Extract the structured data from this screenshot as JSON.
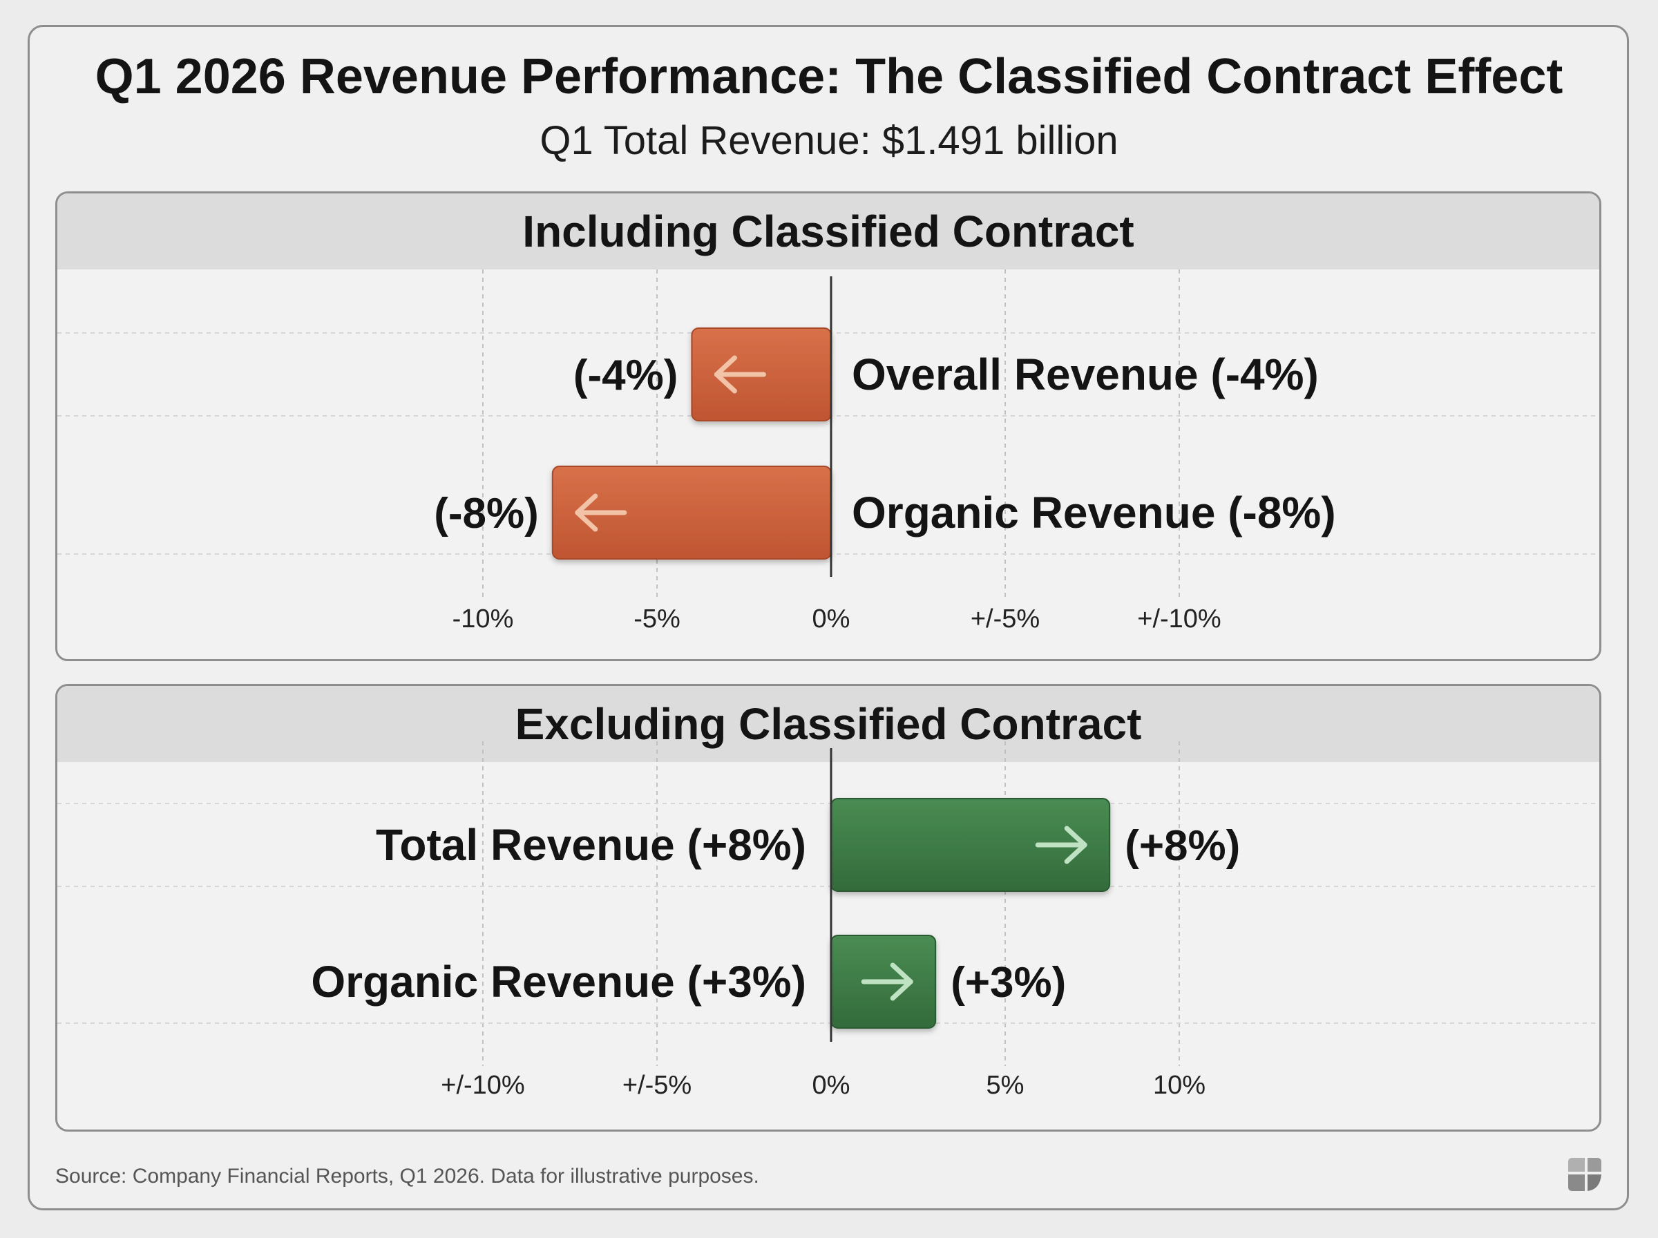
{
  "title": "Q1 2026 Revenue Performance: The Classified Contract Effect",
  "subtitle": "Q1 Total Revenue: $1.491 billion",
  "source": "Source: Company Financial Reports, Q1 2026. Data for illustrative purposes.",
  "colors": {
    "negative": "#c9603a",
    "positive": "#3c7a44",
    "axis": "#333333",
    "grid": "#c2c2c2"
  },
  "chart_data": [
    {
      "type": "bar",
      "orientation": "horizontal",
      "title": "Including Classified Contract",
      "xlim": [
        -10,
        10
      ],
      "ticks": [
        {
          "value": -10,
          "label": "-10%"
        },
        {
          "value": -5,
          "label": "-5%"
        },
        {
          "value": 0,
          "label": "0%"
        },
        {
          "value": 5,
          "label": "+/-5%"
        },
        {
          "value": 10,
          "label": "+/-10%"
        }
      ],
      "bars": [
        {
          "category": "Overall Revenue (-4%)",
          "value": -4,
          "data_label": "(-4%)"
        },
        {
          "category": "Organic Revenue (-8%)",
          "value": -8,
          "data_label": "(-8%)"
        }
      ],
      "grid": true
    },
    {
      "type": "bar",
      "orientation": "horizontal",
      "title": "Excluding Classified Contract",
      "xlim": [
        -10,
        10
      ],
      "ticks": [
        {
          "value": -10,
          "label": "+/-10%"
        },
        {
          "value": -5,
          "label": "+/-5%"
        },
        {
          "value": 0,
          "label": "0%"
        },
        {
          "value": 5,
          "label": "5%"
        },
        {
          "value": 10,
          "label": "10%"
        }
      ],
      "bars": [
        {
          "category": "Total Revenue (+8%)",
          "value": 8,
          "data_label": "(+8%)"
        },
        {
          "category": "Organic Revenue (+3%)",
          "value": 3,
          "data_label": "(+3%)"
        }
      ],
      "grid": true
    }
  ]
}
